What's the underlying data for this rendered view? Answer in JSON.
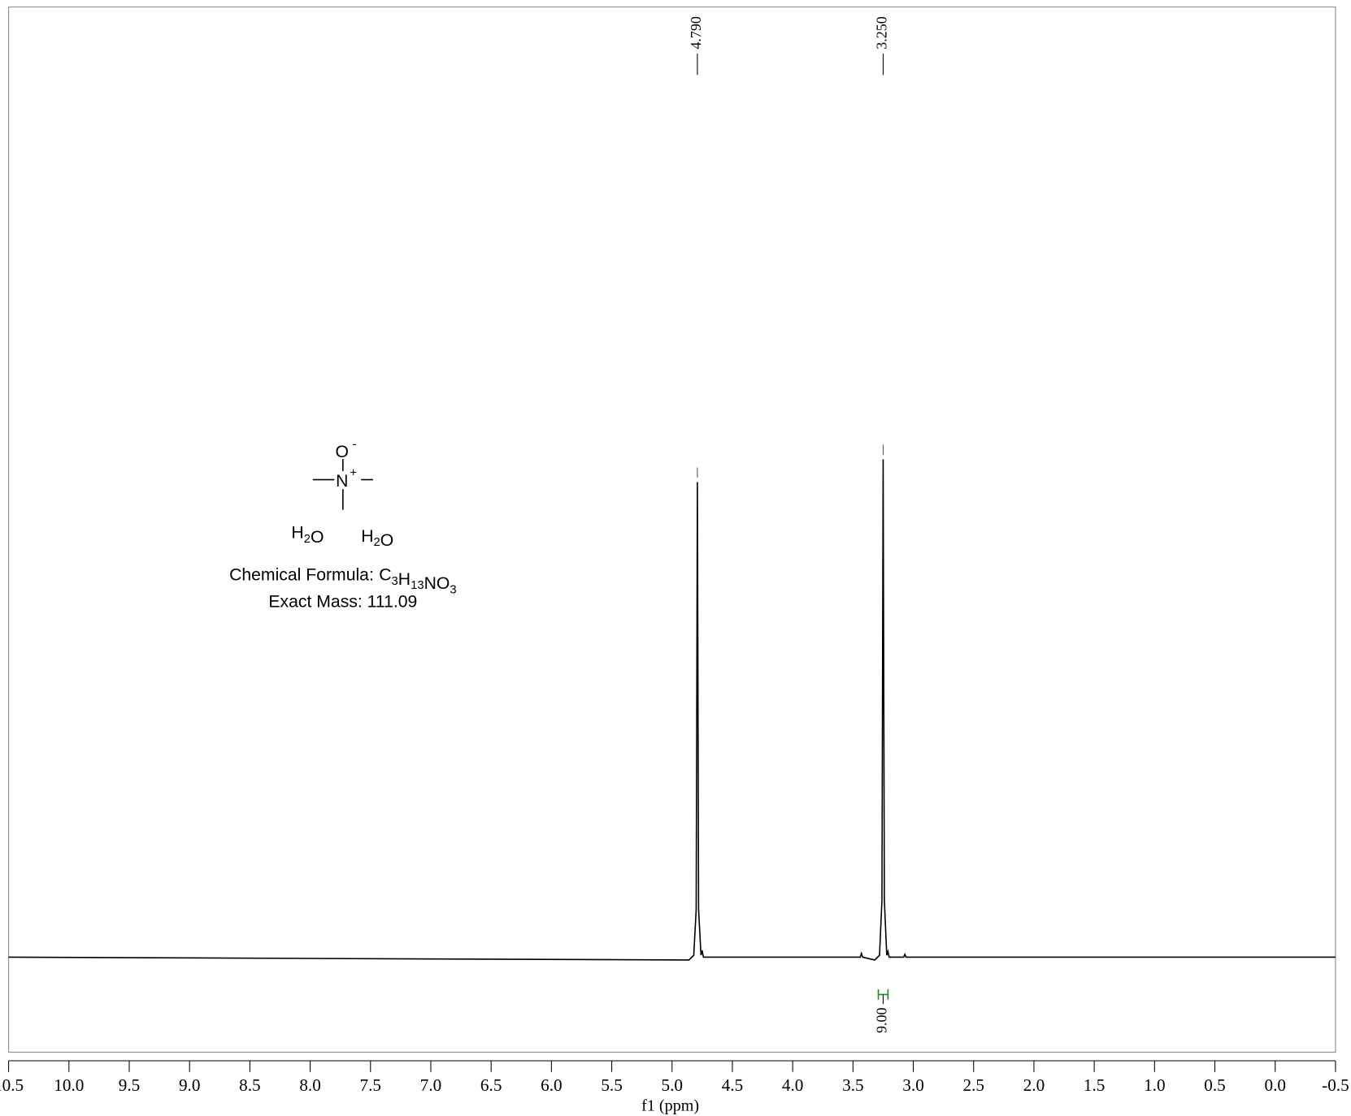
{
  "chart_data": {
    "type": "line",
    "x_label": "f1 (ppm)",
    "xlim": [
      10.5,
      -0.5
    ],
    "ylim": [
      -0.1,
      1.0
    ],
    "xticks": [
      {
        "value": 10.5,
        "label": "10.5"
      },
      {
        "value": 10,
        "label": "10.0"
      },
      9.5,
      {
        "value": 9,
        "label": "9.0"
      },
      8.5,
      {
        "value": 8,
        "label": "8.0"
      },
      7.5,
      {
        "value": 7,
        "label": "7.0"
      },
      6.5,
      {
        "value": 6,
        "label": "6.0"
      },
      5.5,
      {
        "value": 5,
        "label": "5.0"
      },
      4.5,
      {
        "value": 4,
        "label": "4.0"
      },
      3.5,
      {
        "value": 3,
        "label": "3.0"
      },
      2.5,
      {
        "value": 2,
        "label": "2.0"
      },
      1.5,
      {
        "value": 1,
        "label": "1.0"
      },
      0.5,
      {
        "value": 0,
        "label": "0.0"
      },
      -0.5
    ],
    "color": "#000000",
    "x": [
      10.5,
      4.86,
      4.82,
      4.8,
      4.79,
      4.78,
      4.76,
      4.75,
      4.74,
      3.44,
      3.43,
      3.42,
      3.32,
      3.28,
      3.26,
      3.25,
      3.24,
      3.22,
      3.21,
      3.2,
      3.08,
      3.07,
      3.06,
      -0.5
    ],
    "values": [
      0,
      -0.003,
      0.002,
      0.05,
      0.5,
      0.05,
      0.002,
      0.007,
      0,
      0,
      0.004,
      0,
      -0.003,
      0.002,
      0.06,
      0.524,
      0.06,
      0.002,
      0.006,
      0,
      0,
      0.003,
      0,
      0
    ],
    "peak_labels": [
      {
        "value": 4.79,
        "label": "4.790"
      },
      {
        "value": 3.25,
        "label": "3.250"
      }
    ],
    "integrals": [
      {
        "from": 3.29,
        "to": 3.21,
        "value": 9,
        "label": "9.00",
        "color": "#228B22"
      }
    ],
    "structure": {
      "anion": "O",
      "anion_charge": "-",
      "cation": "N",
      "cation_charge": "+",
      "water": [
        [
          "H",
          "2",
          "O"
        ],
        [
          "H",
          "2",
          "O"
        ]
      ],
      "formula_prefix": "Chemical Formula:",
      "formula": [
        [
          "C",
          "3"
        ],
        [
          "H",
          "13"
        ],
        [
          "N",
          null
        ],
        [
          "O",
          "3"
        ]
      ],
      "exact_mass": "Exact Mass: 111.09"
    }
  }
}
